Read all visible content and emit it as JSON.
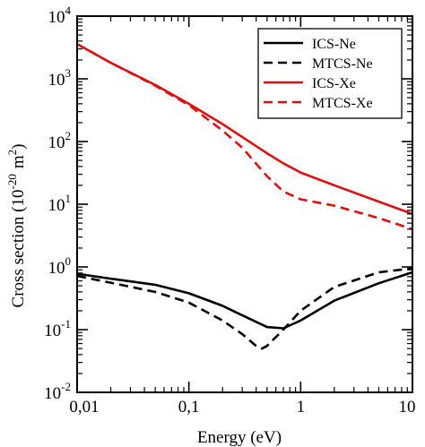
{
  "chart_data": {
    "type": "line",
    "xlabel": "Energy (eV)",
    "ylabel": "Cross section (10-20 m2)",
    "ylabel_parts": {
      "prefix": "Cross section (10",
      "exponent": "-20",
      "middle": "m",
      "unit_exponent": "2",
      "suffix": ")"
    },
    "xscale": "log",
    "yscale": "log",
    "xlim": [
      0.01,
      10
    ],
    "ylim": [
      0.01,
      10000
    ],
    "grid": false,
    "legend_position": "top-right",
    "x_ticks": [
      {
        "value": 0.01,
        "label": "0,01"
      },
      {
        "value": 0.1,
        "label": "0,1"
      },
      {
        "value": 1,
        "label": "1"
      },
      {
        "value": 10,
        "label": "10"
      }
    ],
    "y_ticks": [
      {
        "value": 0.01,
        "base": "10",
        "exp": "-2"
      },
      {
        "value": 0.1,
        "base": "10",
        "exp": "-1"
      },
      {
        "value": 1,
        "base": "10",
        "exp": "0"
      },
      {
        "value": 10,
        "base": "10",
        "exp": "1"
      },
      {
        "value": 100,
        "base": "10",
        "exp": "2"
      },
      {
        "value": 1000,
        "base": "10",
        "exp": "3"
      },
      {
        "value": 10000,
        "base": "10",
        "exp": "4"
      }
    ],
    "series": [
      {
        "name": "ICS-Ne",
        "color": "#000000",
        "dash": "solid",
        "x": [
          0.01,
          0.02,
          0.05,
          0.1,
          0.2,
          0.3,
          0.5,
          0.7,
          1.0,
          2.0,
          5.0,
          10.0
        ],
        "y": [
          0.78,
          0.65,
          0.52,
          0.38,
          0.24,
          0.17,
          0.11,
          0.105,
          0.14,
          0.29,
          0.55,
          0.82
        ]
      },
      {
        "name": "MTCS-Ne",
        "color": "#000000",
        "dash": "dashed",
        "x": [
          0.01,
          0.02,
          0.05,
          0.1,
          0.2,
          0.3,
          0.4,
          0.45,
          0.5,
          0.7,
          1.0,
          2.0,
          5.0,
          10.0
        ],
        "y": [
          0.72,
          0.56,
          0.4,
          0.27,
          0.14,
          0.085,
          0.055,
          0.05,
          0.055,
          0.1,
          0.2,
          0.48,
          0.82,
          0.95
        ]
      },
      {
        "name": "ICS-Xe",
        "color": "#dd1111",
        "dash": "solid",
        "x": [
          0.01,
          0.02,
          0.05,
          0.1,
          0.2,
          0.5,
          0.7,
          1.0,
          2.0,
          5.0,
          10.0
        ],
        "y": [
          3600,
          1800,
          800,
          400,
          190,
          65,
          45,
          32,
          20,
          11,
          7
        ]
      },
      {
        "name": "MTCS-Xe",
        "color": "#dd1111",
        "dash": "dashed",
        "x": [
          0.01,
          0.02,
          0.05,
          0.1,
          0.2,
          0.3,
          0.5,
          0.7,
          1.0,
          2.0,
          5.0,
          10.0
        ],
        "y": [
          3600,
          1800,
          780,
          380,
          150,
          80,
          28,
          16,
          12,
          9.5,
          6,
          4
        ]
      }
    ]
  }
}
